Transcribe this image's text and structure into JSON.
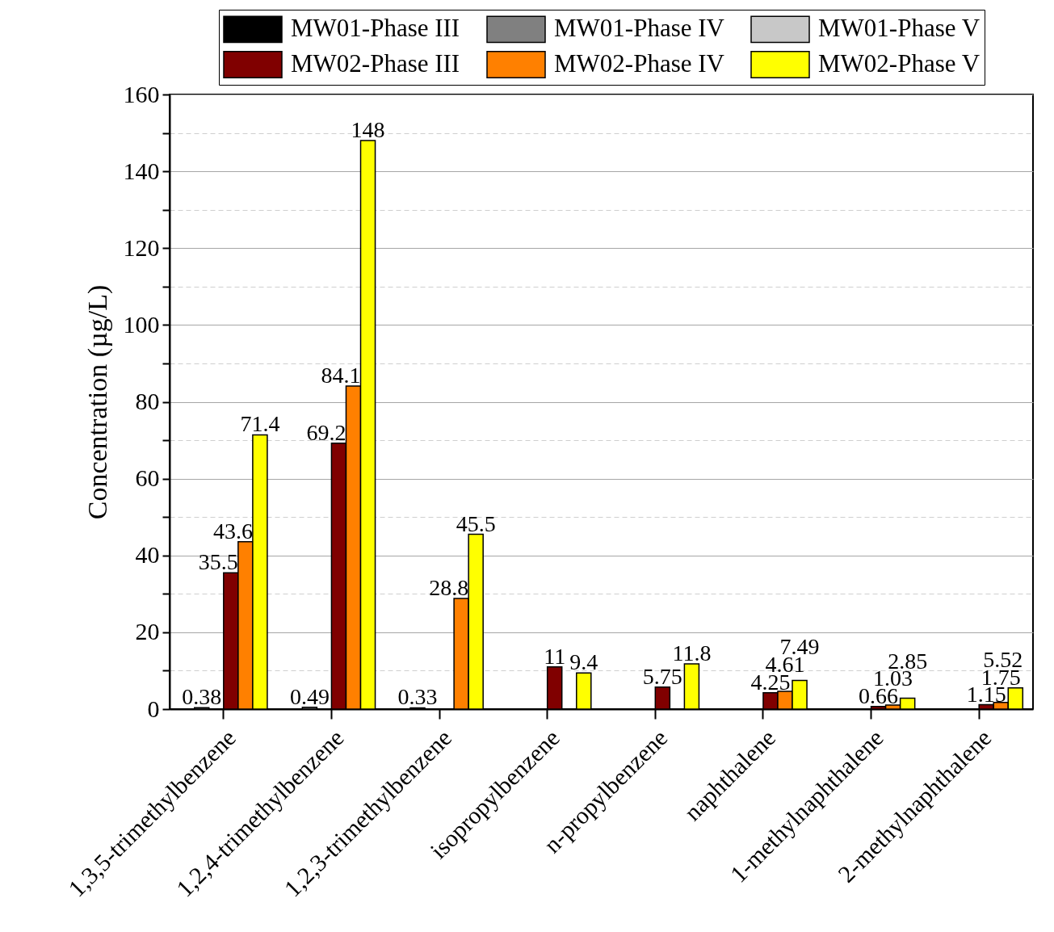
{
  "chart_data": {
    "type": "bar",
    "ylabel": "Concentration (µg/L)",
    "categories": [
      "1,3,5-trimethylbenzene",
      "1,2,4-trimethylbenzene",
      "1,2,3-trimethylbenzene",
      "isopropylbenzene",
      "n-propylbenzene",
      "naphthalene",
      "1-methylnaphthalene",
      "2-methylnaphthalene"
    ],
    "series": [
      {
        "name": "MW01-Phase III",
        "color": "#000000",
        "values": [
          null,
          null,
          null,
          null,
          null,
          null,
          null,
          null
        ]
      },
      {
        "name": "MW01-Phase IV",
        "color": "#808080",
        "values": [
          0.38,
          0.49,
          0.33,
          null,
          null,
          null,
          null,
          null
        ]
      },
      {
        "name": "MW01-Phase V",
        "color": "#c8c8c8",
        "values": [
          null,
          null,
          null,
          null,
          null,
          null,
          null,
          null
        ]
      },
      {
        "name": "MW02-Phase III",
        "color": "#800000",
        "values": [
          35.5,
          69.2,
          null,
          11,
          5.75,
          4.25,
          0.66,
          1.15
        ]
      },
      {
        "name": "MW02-Phase IV",
        "color": "#ff8000",
        "values": [
          43.6,
          84.1,
          28.8,
          null,
          null,
          4.61,
          1.03,
          1.75
        ]
      },
      {
        "name": "MW02-Phase V",
        "color": "#ffff00",
        "values": [
          71.4,
          148,
          45.5,
          9.4,
          11.8,
          7.49,
          2.85,
          5.52
        ]
      }
    ],
    "ylim": [
      0,
      160
    ],
    "yticks": [
      0,
      {
        "value": 10,
        "label": null
      },
      20,
      {
        "value": 30,
        "label": null
      },
      40,
      {
        "value": 50,
        "label": null
      },
      60,
      {
        "value": 70,
        "label": null
      },
      80,
      {
        "value": 90,
        "label": null
      },
      100,
      {
        "value": 110,
        "label": null
      },
      120,
      {
        "value": 130,
        "label": null
      },
      140,
      {
        "value": 150,
        "label": null
      },
      160
    ],
    "grid": "y",
    "legend": "top",
    "data_labels": true
  }
}
